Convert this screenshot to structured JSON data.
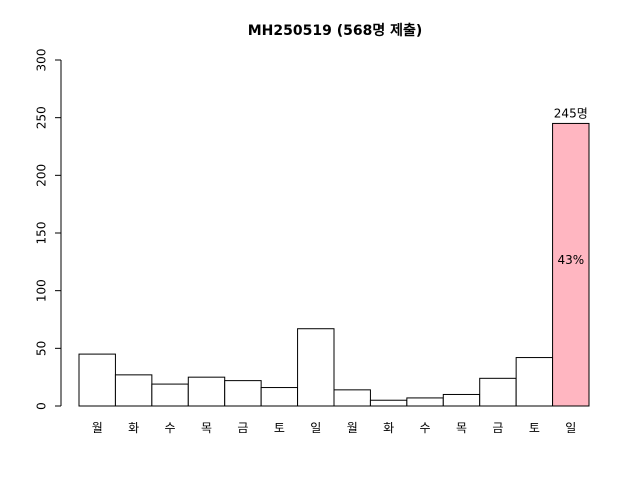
{
  "chart_data": {
    "type": "bar",
    "title": "MH250519 (568명 제출)",
    "xlabel": "",
    "ylabel": "",
    "ylim": [
      0,
      300
    ],
    "yticks": [
      0,
      50,
      100,
      150,
      200,
      250,
      300
    ],
    "categories": [
      "월",
      "화",
      "수",
      "목",
      "금",
      "토",
      "일",
      "월",
      "화",
      "수",
      "목",
      "금",
      "토",
      "일"
    ],
    "values": [
      45,
      27,
      19,
      25,
      22,
      16,
      67,
      14,
      5,
      7,
      10,
      24,
      42,
      245
    ],
    "highlight": {
      "index": 13,
      "color": "#FFB6C1",
      "top_label": "245명",
      "inner_label": "43%"
    },
    "colors": {
      "default_bar": "#FFFFFF",
      "outline": "#000000"
    },
    "grid": false,
    "legend": "none"
  }
}
